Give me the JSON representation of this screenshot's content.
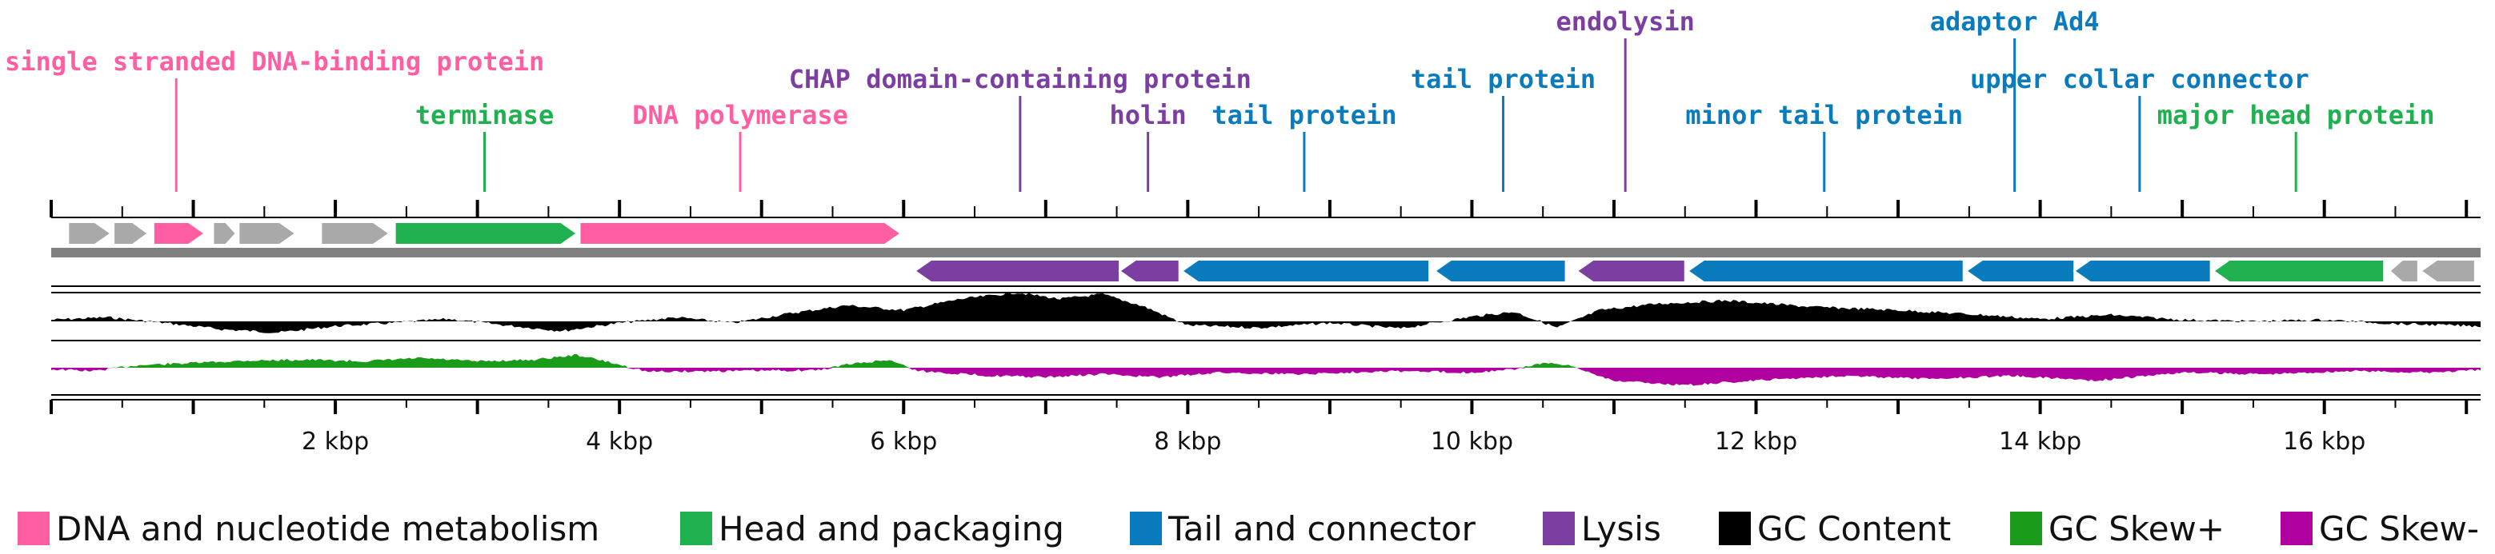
{
  "colors": {
    "dna": "#ff5fa2",
    "head": "#1fb14f",
    "tail": "#0a7bbd",
    "lysis": "#7d3ea1",
    "gc_content": "#000000",
    "gc_skew_plus": "#1a9b1a",
    "gc_skew_minus": "#b0009f",
    "unknown": "#a9a9a9",
    "track_line": "#808080"
  },
  "genome_length_kbp": 17.1,
  "axis": {
    "ticks": [
      {
        "kbp": 2,
        "label": "2 kbp"
      },
      {
        "kbp": 4,
        "label": "4 kbp"
      },
      {
        "kbp": 6,
        "label": "6 kbp"
      },
      {
        "kbp": 8,
        "label": "8 kbp"
      },
      {
        "kbp": 10,
        "label": "10 kbp"
      },
      {
        "kbp": 12,
        "label": "12 kbp"
      },
      {
        "kbp": 14,
        "label": "14 kbp"
      },
      {
        "kbp": 16,
        "label": "16 kbp"
      }
    ]
  },
  "annotations": [
    {
      "text": "single stranded DNA-binding protein",
      "category": "dna",
      "kbp": 0.88,
      "level": 0
    },
    {
      "text": "terminase",
      "category": "head",
      "kbp": 3.05,
      "level": 2
    },
    {
      "text": "DNA polymerase",
      "category": "dna",
      "kbp": 4.85,
      "level": 2
    },
    {
      "text": "CHAP domain-containing protein",
      "category": "lysis",
      "kbp": 6.82,
      "level": 1
    },
    {
      "text": "holin",
      "category": "lysis",
      "kbp": 7.72,
      "level": 2
    },
    {
      "text": "tail protein",
      "category": "tail",
      "kbp": 8.82,
      "level": 2
    },
    {
      "text": "tail protein",
      "category": "tail",
      "kbp": 10.22,
      "level": 1
    },
    {
      "text": "endolysin",
      "category": "lysis",
      "kbp": 11.08,
      "level": -1
    },
    {
      "text": "minor tail protein",
      "category": "tail",
      "kbp": 12.48,
      "level": 2
    },
    {
      "text": "adaptor Ad4",
      "category": "tail",
      "kbp": 13.82,
      "level": -1
    },
    {
      "text": "upper collar connector",
      "category": "tail",
      "kbp": 14.7,
      "level": 1
    },
    {
      "text": "major head protein",
      "category": "head",
      "kbp": 15.8,
      "level": 2
    }
  ],
  "genes": [
    {
      "start": 0.12,
      "end": 0.42,
      "strand": "+",
      "category": "unknown"
    },
    {
      "start": 0.44,
      "end": 0.68,
      "strand": "+",
      "category": "unknown"
    },
    {
      "start": 0.72,
      "end": 1.08,
      "strand": "+",
      "category": "dna"
    },
    {
      "start": 1.14,
      "end": 1.3,
      "strand": "+",
      "category": "unknown"
    },
    {
      "start": 1.32,
      "end": 1.72,
      "strand": "+",
      "category": "unknown"
    },
    {
      "start": 1.9,
      "end": 2.38,
      "strand": "+",
      "category": "unknown"
    },
    {
      "start": 2.42,
      "end": 3.7,
      "strand": "+",
      "category": "head"
    },
    {
      "start": 3.72,
      "end": 5.98,
      "strand": "+",
      "category": "dna"
    },
    {
      "start": 6.08,
      "end": 7.52,
      "strand": "-",
      "category": "lysis"
    },
    {
      "start": 7.52,
      "end": 7.94,
      "strand": "-",
      "category": "lysis"
    },
    {
      "start": 7.96,
      "end": 9.7,
      "strand": "-",
      "category": "tail"
    },
    {
      "start": 9.74,
      "end": 10.66,
      "strand": "-",
      "category": "tail"
    },
    {
      "start": 10.74,
      "end": 11.5,
      "strand": "-",
      "category": "lysis"
    },
    {
      "start": 11.52,
      "end": 13.46,
      "strand": "-",
      "category": "tail"
    },
    {
      "start": 13.48,
      "end": 14.24,
      "strand": "-",
      "category": "tail"
    },
    {
      "start": 14.24,
      "end": 15.2,
      "strand": "-",
      "category": "tail"
    },
    {
      "start": 15.22,
      "end": 16.42,
      "strand": "-",
      "category": "head"
    },
    {
      "start": 16.46,
      "end": 16.66,
      "strand": "-",
      "category": "unknown"
    },
    {
      "start": 16.68,
      "end": 17.06,
      "strand": "-",
      "category": "unknown"
    }
  ],
  "legend": [
    {
      "label": "DNA and nucleotide metabolism",
      "color_key": "dna"
    },
    {
      "label": "Head and packaging",
      "color_key": "head"
    },
    {
      "label": "Tail and connector",
      "color_key": "tail"
    },
    {
      "label": "Lysis",
      "color_key": "lysis"
    },
    {
      "label": "GC Content",
      "color_key": "gc_content"
    },
    {
      "label": "GC Skew+",
      "color_key": "gc_skew_plus"
    },
    {
      "label": "GC Skew-",
      "color_key": "gc_skew_minus"
    }
  ]
}
